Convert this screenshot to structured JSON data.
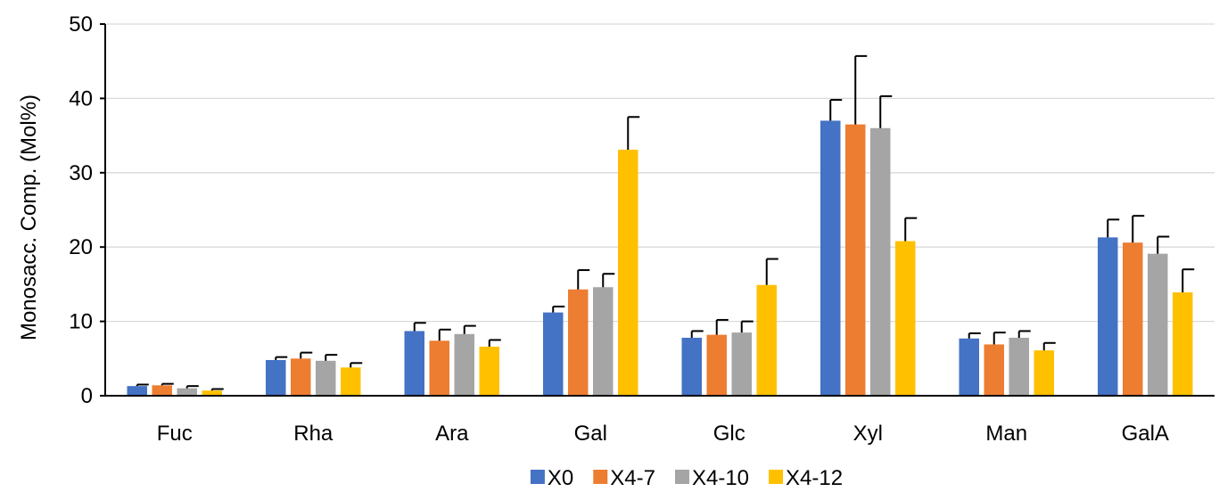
{
  "chart_data": {
    "type": "bar",
    "title": "",
    "xlabel": "",
    "ylabel": "Monosacc. Comp. (Mol%)",
    "ylim": [
      0,
      50
    ],
    "yticks": [
      0,
      10,
      20,
      30,
      40,
      50
    ],
    "grid": true,
    "legend_position": "bottom-center",
    "error_bars": true,
    "categories": [
      "Fuc",
      "Rha",
      "Ara",
      "Gal",
      "Glc",
      "Xyl",
      "Man",
      "GalA"
    ],
    "series": [
      {
        "name": "X0",
        "color": "#4472C4",
        "values": [
          1.3,
          4.8,
          8.7,
          11.2,
          7.8,
          37.0,
          7.7,
          21.3
        ],
        "errors": [
          0.2,
          0.4,
          1.1,
          0.8,
          0.9,
          2.8,
          0.7,
          2.4
        ]
      },
      {
        "name": "X4-7",
        "color": "#ED7D31",
        "values": [
          1.4,
          5.0,
          7.4,
          14.3,
          8.2,
          36.5,
          6.9,
          20.6
        ],
        "errors": [
          0.2,
          0.8,
          1.5,
          2.6,
          2.0,
          9.2,
          1.6,
          3.6
        ]
      },
      {
        "name": "X4-10",
        "color": "#A5A5A5",
        "values": [
          1.0,
          4.7,
          8.3,
          14.6,
          8.5,
          36.0,
          7.8,
          19.1
        ],
        "errors": [
          0.3,
          0.8,
          1.1,
          1.8,
          1.5,
          4.3,
          0.9,
          2.3
        ]
      },
      {
        "name": "X4-12",
        "color": "#FFC000",
        "values": [
          0.7,
          3.8,
          6.6,
          33.1,
          14.9,
          20.8,
          6.1,
          13.9
        ],
        "errors": [
          0.2,
          0.6,
          0.9,
          4.4,
          3.5,
          3.1,
          1.0,
          3.1
        ]
      }
    ]
  }
}
